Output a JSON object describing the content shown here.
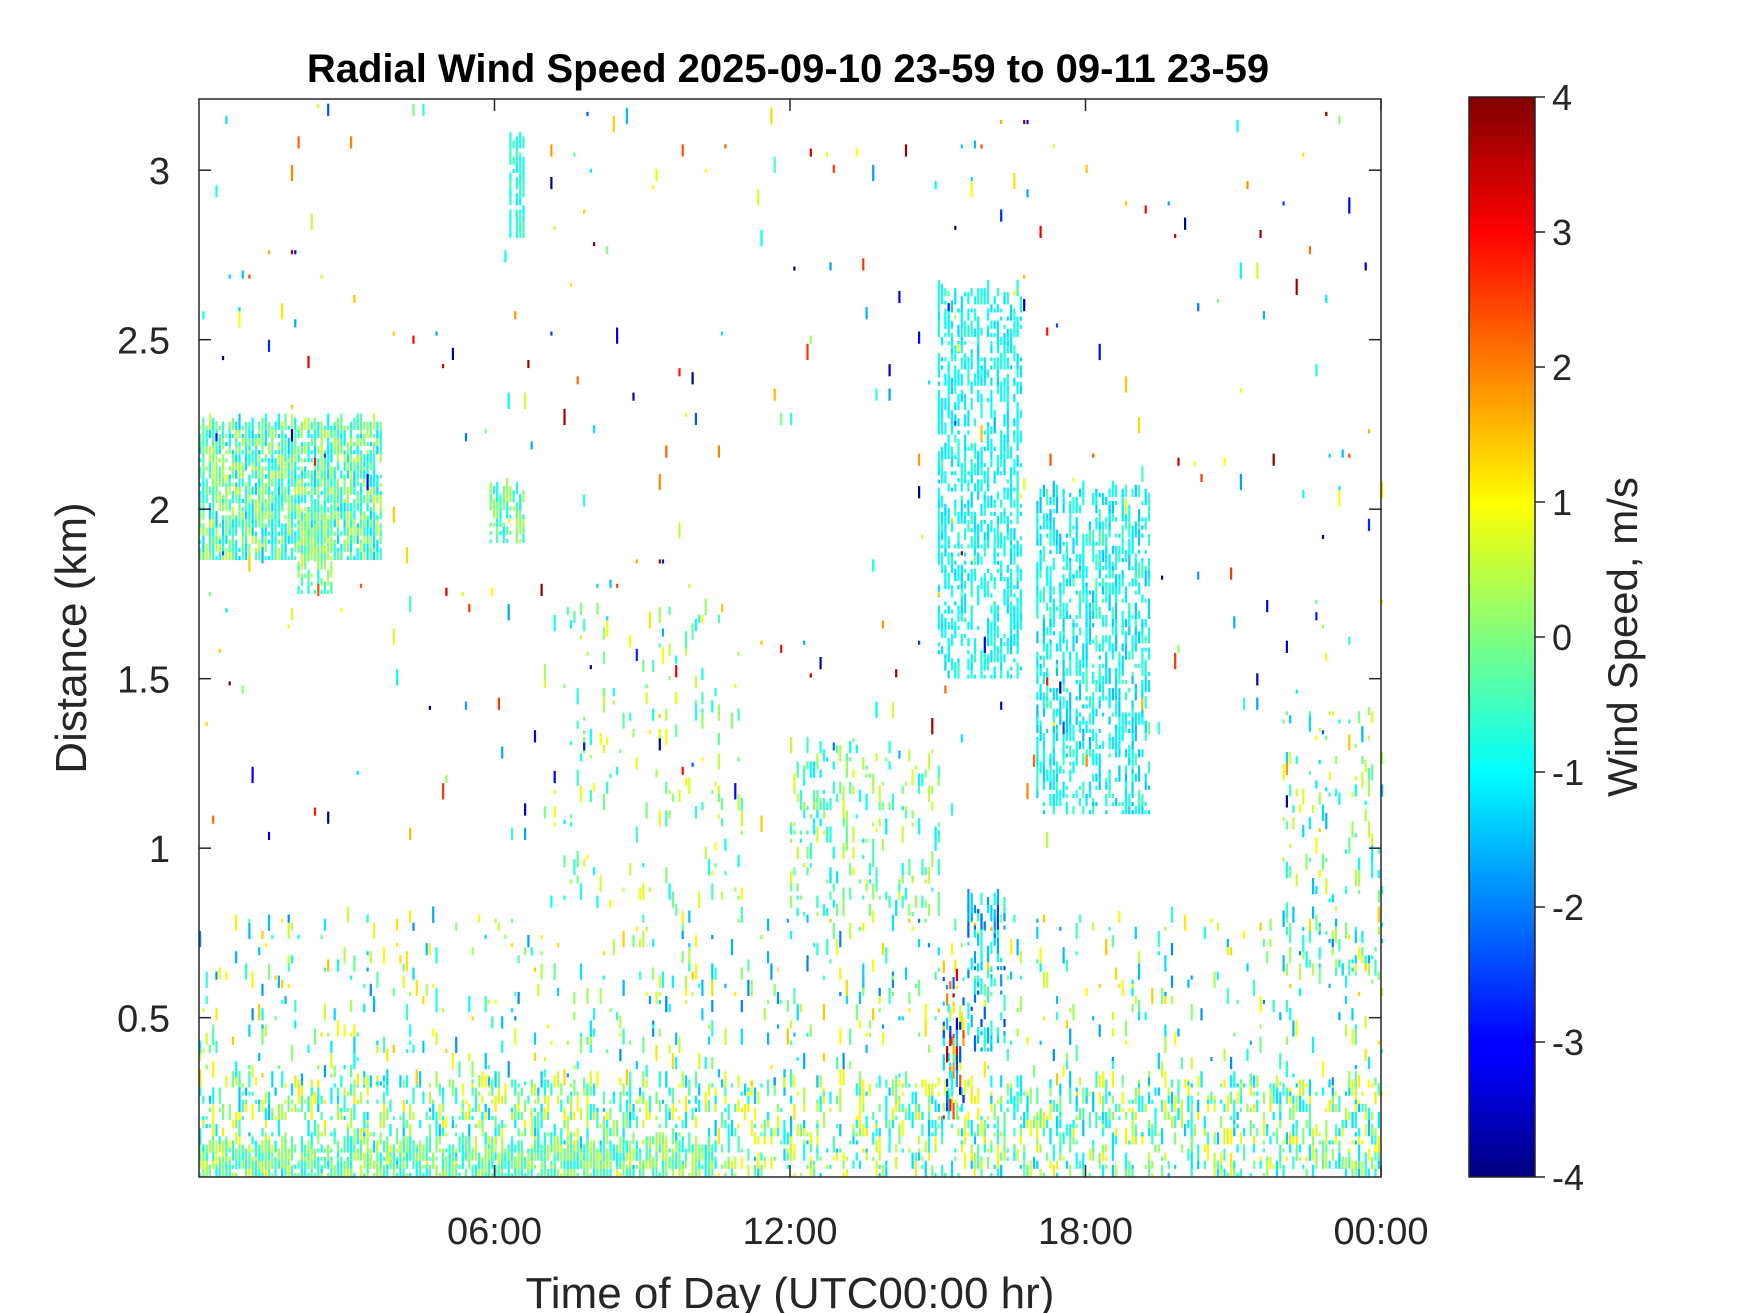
{
  "chart_data": {
    "type": "heatmap",
    "title": "Radial Wind Speed 2025-09-10 23-59 to 09-11 23-59",
    "xlabel": "Time of Day (UTC00:00 hr)",
    "ylabel": "Distance (km)",
    "colorbar_label": "Wind Speed, m/s",
    "xlim_hours": [
      0,
      24
    ],
    "ylim_km": [
      0.03,
      3.21
    ],
    "clim": [
      -4,
      4
    ],
    "colormap": "jet",
    "x_ticks": [
      {
        "hour": 6,
        "label": "06:00"
      },
      {
        "hour": 12,
        "label": "12:00"
      },
      {
        "hour": 18,
        "label": "18:00"
      },
      {
        "hour": 24,
        "label": "00:00"
      }
    ],
    "y_ticks": [
      {
        "km": 0.5,
        "label": "0.5"
      },
      {
        "km": 1,
        "label": "1"
      },
      {
        "km": 1.5,
        "label": "1.5"
      },
      {
        "km": 2,
        "label": "2"
      },
      {
        "km": 2.5,
        "label": "2.5"
      },
      {
        "km": 3,
        "label": "3"
      }
    ],
    "colorbar_ticks": [
      {
        "value": 4,
        "label": "4"
      },
      {
        "value": 3,
        "label": "3"
      },
      {
        "value": 2,
        "label": "2"
      },
      {
        "value": 1,
        "label": "1"
      },
      {
        "value": 0,
        "label": "0"
      },
      {
        "value": -1,
        "label": "-1"
      },
      {
        "value": -2,
        "label": "-2"
      },
      {
        "value": -3,
        "label": "-3"
      },
      {
        "value": -4,
        "label": "-4"
      }
    ],
    "regions": [
      {
        "t": [
          0.0,
          3.7
        ],
        "km": [
          1.85,
          2.25
        ],
        "density": 0.85,
        "speed": [
          -1.4,
          0.6
        ]
      },
      {
        "t": [
          2.0,
          2.7
        ],
        "km": [
          1.75,
          2.0
        ],
        "density": 0.7,
        "speed": [
          -0.8,
          0.6
        ]
      },
      {
        "t": [
          6.3,
          6.6
        ],
        "km": [
          2.8,
          3.08
        ],
        "density": 0.7,
        "speed": [
          -1.0,
          -0.4
        ]
      },
      {
        "t": [
          5.9,
          6.6
        ],
        "km": [
          1.9,
          2.05
        ],
        "density": 0.7,
        "speed": [
          -1.0,
          0.5
        ]
      },
      {
        "t": [
          15.0,
          16.7
        ],
        "km": [
          1.5,
          2.65
        ],
        "density": 0.5,
        "speed": [
          -1.3,
          -0.6
        ]
      },
      {
        "t": [
          17.0,
          19.3
        ],
        "km": [
          1.1,
          2.05
        ],
        "density": 0.45,
        "speed": [
          -1.5,
          -0.4
        ]
      },
      {
        "t": [
          12.0,
          15.0
        ],
        "km": [
          0.8,
          1.3
        ],
        "density": 0.22,
        "speed": [
          -1.2,
          0.8
        ]
      },
      {
        "t": [
          22.0,
          24.0
        ],
        "km": [
          0.6,
          1.4
        ],
        "density": 0.12,
        "speed": [
          -1.6,
          1.0
        ]
      },
      {
        "t": [
          0.0,
          24.0
        ],
        "km": [
          0.03,
          0.3
        ],
        "density": 0.35,
        "speed": [
          -1.5,
          1.2
        ]
      },
      {
        "t": [
          0.0,
          10.5
        ],
        "km": [
          0.03,
          0.12
        ],
        "density": 0.8,
        "speed": [
          -1.0,
          0.6
        ]
      },
      {
        "t": [
          0.0,
          24.0
        ],
        "km": [
          0.3,
          0.8
        ],
        "density": 0.08,
        "speed": [
          -2.0,
          1.5
        ]
      },
      {
        "t": [
          7.0,
          11.0
        ],
        "km": [
          0.8,
          1.7
        ],
        "density": 0.06,
        "speed": [
          -1.0,
          1.0
        ]
      },
      {
        "t": [
          15.1,
          15.5
        ],
        "km": [
          0.2,
          0.65
        ],
        "density": 0.4,
        "speed": [
          -4.0,
          4.0
        ]
      },
      {
        "t": [
          15.6,
          16.4
        ],
        "km": [
          0.4,
          0.85
        ],
        "density": 0.35,
        "speed": [
          -2.5,
          -0.5
        ]
      },
      {
        "t": [
          0.0,
          24.0
        ],
        "km": [
          1.0,
          3.2
        ],
        "density": 0.01,
        "speed": [
          -4.0,
          4.0
        ]
      }
    ]
  }
}
